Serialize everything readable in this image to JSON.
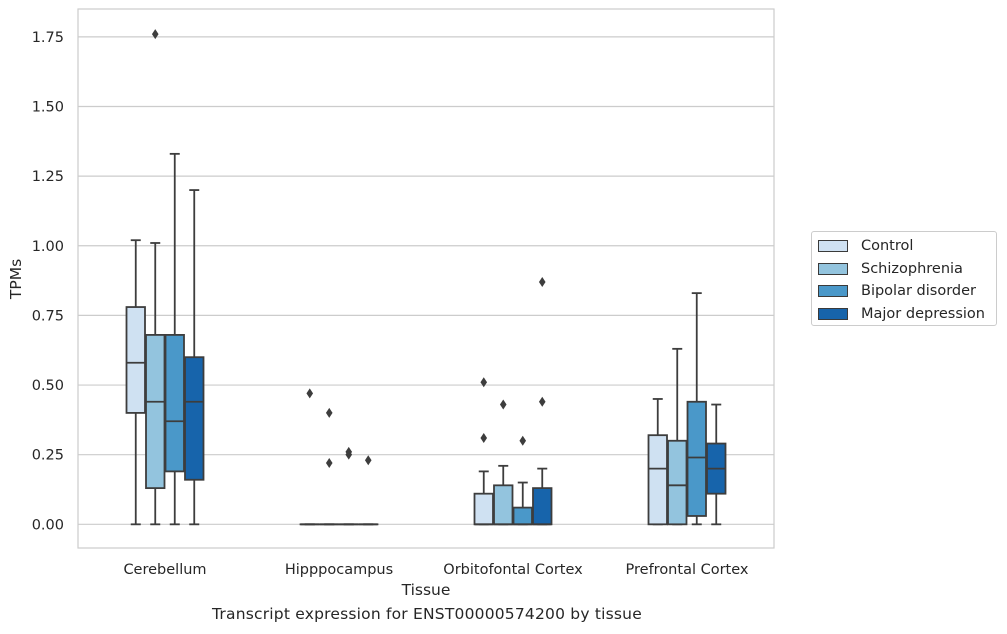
{
  "caption": "Transcript expression for ENST00000574200 by tissue",
  "chart_data": {
    "type": "box",
    "xlabel": "Tissue",
    "ylabel": "TPMs",
    "ylim": [
      -0.085,
      1.85
    ],
    "yticks": [
      "0.00",
      "0.25",
      "0.50",
      "0.75",
      "1.00",
      "1.25",
      "1.50",
      "1.75"
    ],
    "categories": [
      "Cerebellum",
      "Hipppocampus",
      "Orbitofontal Cortex",
      "Prefrontal Cortex"
    ],
    "grid": "horizontal",
    "legend_position": "right-center",
    "series": [
      {
        "name": "Control",
        "color": "#cfe1f2",
        "boxes": [
          {
            "whisker_low": 0.0,
            "q1": 0.4,
            "median": 0.58,
            "q3": 0.78,
            "whisker_high": 1.02,
            "outliers": []
          },
          {
            "whisker_low": 0.0,
            "q1": 0.0,
            "median": 0.0,
            "q3": 0.0,
            "whisker_high": 0.0,
            "outliers": [
              0.47
            ]
          },
          {
            "whisker_low": 0.0,
            "q1": 0.0,
            "median": 0.0,
            "q3": 0.11,
            "whisker_high": 0.19,
            "outliers": [
              0.31,
              0.51
            ]
          },
          {
            "whisker_low": 0.0,
            "q1": 0.0,
            "median": 0.2,
            "q3": 0.32,
            "whisker_high": 0.45,
            "outliers": []
          }
        ]
      },
      {
        "name": "Schizophrenia",
        "color": "#93c4de",
        "boxes": [
          {
            "whisker_low": 0.0,
            "q1": 0.13,
            "median": 0.44,
            "q3": 0.68,
            "whisker_high": 1.01,
            "outliers": [
              1.76
            ]
          },
          {
            "whisker_low": 0.0,
            "q1": 0.0,
            "median": 0.0,
            "q3": 0.0,
            "whisker_high": 0.0,
            "outliers": [
              0.22,
              0.4
            ]
          },
          {
            "whisker_low": 0.0,
            "q1": 0.0,
            "median": 0.0,
            "q3": 0.14,
            "whisker_high": 0.21,
            "outliers": [
              0.43
            ]
          },
          {
            "whisker_low": 0.0,
            "q1": 0.0,
            "median": 0.14,
            "q3": 0.3,
            "whisker_high": 0.63,
            "outliers": []
          }
        ]
      },
      {
        "name": "Bipolar disorder",
        "color": "#4a98c9",
        "boxes": [
          {
            "whisker_low": 0.0,
            "q1": 0.19,
            "median": 0.37,
            "q3": 0.68,
            "whisker_high": 1.33,
            "outliers": []
          },
          {
            "whisker_low": 0.0,
            "q1": 0.0,
            "median": 0.0,
            "q3": 0.0,
            "whisker_high": 0.0,
            "outliers": [
              0.25,
              0.26
            ]
          },
          {
            "whisker_low": 0.0,
            "q1": 0.0,
            "median": 0.0,
            "q3": 0.06,
            "whisker_high": 0.15,
            "outliers": [
              0.3
            ]
          },
          {
            "whisker_low": 0.0,
            "q1": 0.03,
            "median": 0.24,
            "q3": 0.44,
            "whisker_high": 0.83,
            "outliers": []
          }
        ]
      },
      {
        "name": "Major depression",
        "color": "#1764ab",
        "boxes": [
          {
            "whisker_low": 0.0,
            "q1": 0.16,
            "median": 0.44,
            "q3": 0.6,
            "whisker_high": 1.2,
            "outliers": []
          },
          {
            "whisker_low": 0.0,
            "q1": 0.0,
            "median": 0.0,
            "q3": 0.0,
            "whisker_high": 0.0,
            "outliers": [
              0.23
            ]
          },
          {
            "whisker_low": 0.0,
            "q1": 0.0,
            "median": 0.0,
            "q3": 0.13,
            "whisker_high": 0.2,
            "outliers": [
              0.44,
              0.87
            ]
          },
          {
            "whisker_low": 0.0,
            "q1": 0.11,
            "median": 0.2,
            "q3": 0.29,
            "whisker_high": 0.43,
            "outliers": []
          }
        ]
      }
    ]
  }
}
